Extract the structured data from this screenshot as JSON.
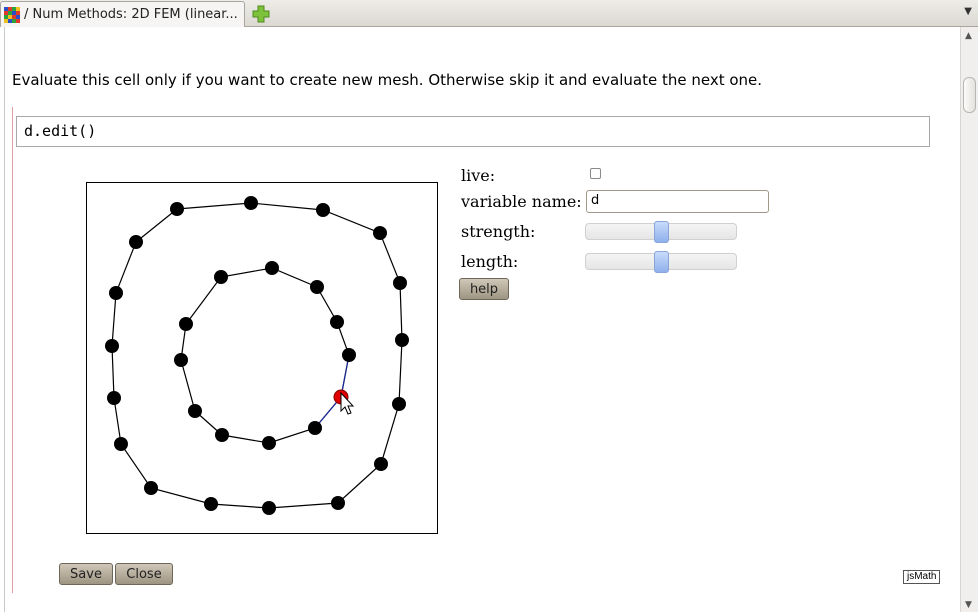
{
  "tab": {
    "title": "/ Num Methods: 2D FEM (linear...",
    "new_tab_icon": "plus-icon",
    "list_icon": "chevron-down-icon"
  },
  "notebook": {
    "text_cell": "Evaluate this cell only if you want to create new mesh. Otherwise skip it and evaluate the next one.",
    "code": "d.edit()"
  },
  "editor": {
    "live_label": "live:",
    "live_checked": false,
    "variable_label": "variable name:",
    "variable_value": "d",
    "strength_label": "strength:",
    "strength_value": 0.5,
    "length_label": "length:",
    "length_value": 0.5,
    "help_label": "help",
    "save_label": "Save",
    "close_label": "Close",
    "colors": {
      "node": "#000000",
      "selected_node": "#e00000",
      "selected_edge": "#1a2a9a"
    }
  },
  "jsmath_badge": "jsMath"
}
